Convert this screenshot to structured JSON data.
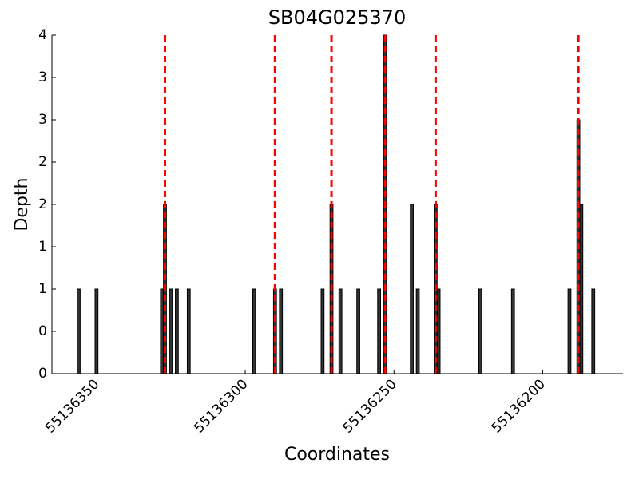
{
  "chart_data": {
    "type": "bar",
    "title": "SB04G025370",
    "x_label": "Coordinates",
    "y_label": "Depth",
    "x": [
      55136356,
      55136350,
      55136328,
      55136327,
      55136325,
      55136323,
      55136319,
      55136297,
      55136290,
      55136288,
      55136274,
      55136271,
      55136268,
      55136262,
      55136255,
      55136253,
      55136244,
      55136242,
      55136236,
      55136235,
      55136221,
      55136210,
      55136191,
      55136188,
      55136187,
      55136183
    ],
    "values": [
      1,
      1,
      1,
      2,
      1,
      1,
      1,
      1,
      1,
      1,
      1,
      2,
      1,
      1,
      1,
      4,
      2,
      1,
      2,
      1,
      1,
      1,
      1,
      3,
      2,
      1
    ],
    "color": "#333333",
    "vlines": [
      55136327,
      55136290,
      55136271,
      55136253,
      55136236,
      55136188
    ],
    "vline_color": "#ff0000",
    "xlim": [
      55136365,
      55136173
    ],
    "xticks": [
      55136350,
      55136300,
      55136250,
      55136200
    ],
    "ylim": [
      0,
      4
    ],
    "yticks": [
      0,
      {
        "value": 0.5,
        "label": "0"
      },
      1,
      {
        "value": 1.5,
        "label": "1"
      },
      2,
      {
        "value": 2.5,
        "label": "2"
      },
      3,
      {
        "value": 3.5,
        "label": "3"
      },
      4
    ]
  }
}
